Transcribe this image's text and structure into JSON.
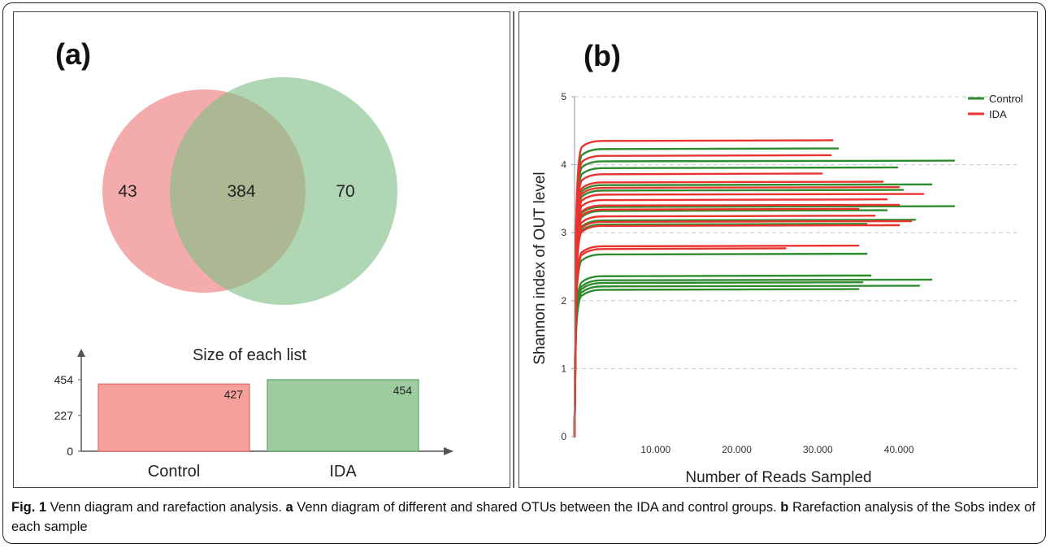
{
  "panel_a": {
    "label": "(a)",
    "venn": {
      "left_only": "43",
      "shared": "384",
      "right_only": "70",
      "left_color": "#f08a8a",
      "right_color": "#7fbf86"
    }
  },
  "panel_b": {
    "label": "(b)"
  },
  "caption": {
    "fig_label": "Fig. 1",
    "title": " Venn diagram and rarefaction analysis. ",
    "a_label": "a",
    "a_text": " Venn diagram of different and shared OTUs between the IDA and control groups. ",
    "b_label": "b",
    "b_text": " Rarefaction analysis of the Sobs index of each sample"
  },
  "chart_data": [
    {
      "type": "bar",
      "title": "Size of each list",
      "categories": [
        "Control",
        "IDA"
      ],
      "values": [
        427,
        454
      ],
      "value_labels": [
        "427",
        "454"
      ],
      "yticks": [
        "454",
        "227",
        "0"
      ],
      "ylim": [
        0,
        454
      ],
      "colors": [
        "#f5a09a",
        "#9ccc9f"
      ],
      "edge_colors": [
        "#e06c66",
        "#5fa466"
      ]
    },
    {
      "type": "line",
      "xlabel": "Number of Reads Sampled",
      "ylabel": "Shannon index of OUT level",
      "xlim": [
        0,
        47000
      ],
      "ylim": [
        0,
        5
      ],
      "xticks": [
        "10.000",
        "20.000",
        "30.000",
        "40.000"
      ],
      "xtick_values": [
        10000,
        20000,
        30000,
        40000
      ],
      "yticks": [
        "0",
        "1",
        "2",
        "3",
        "4",
        "5"
      ],
      "grid": "horizontal dashed",
      "legend": "top-right",
      "series": [
        {
          "name": "Control",
          "color": "#2e8b2e",
          "curves": [
            {
              "plateau": 4.23,
              "end": 32500
            },
            {
              "plateau": 4.05,
              "end": 46800
            },
            {
              "plateau": 3.95,
              "end": 39800
            },
            {
              "plateau": 3.7,
              "end": 44000
            },
            {
              "plateau": 3.62,
              "end": 40500
            },
            {
              "plateau": 3.38,
              "end": 46800
            },
            {
              "plateau": 3.32,
              "end": 38500
            },
            {
              "plateau": 3.18,
              "end": 42000
            },
            {
              "plateau": 3.12,
              "end": 36000
            },
            {
              "plateau": 2.68,
              "end": 36000
            },
            {
              "plateau": 2.36,
              "end": 36500
            },
            {
              "plateau": 2.3,
              "end": 44000
            },
            {
              "plateau": 2.26,
              "end": 35500
            },
            {
              "plateau": 2.21,
              "end": 42500
            },
            {
              "plateau": 2.16,
              "end": 35000
            }
          ]
        },
        {
          "name": "IDA",
          "color": "#e8332f",
          "curves": [
            {
              "plateau": 4.35,
              "end": 31800
            },
            {
              "plateau": 4.13,
              "end": 31600
            },
            {
              "plateau": 3.86,
              "end": 30500
            },
            {
              "plateau": 3.74,
              "end": 38000
            },
            {
              "plateau": 3.66,
              "end": 40000
            },
            {
              "plateau": 3.56,
              "end": 43000
            },
            {
              "plateau": 3.48,
              "end": 38500
            },
            {
              "plateau": 3.4,
              "end": 40000
            },
            {
              "plateau": 3.34,
              "end": 35000
            },
            {
              "plateau": 3.24,
              "end": 37000
            },
            {
              "plateau": 3.16,
              "end": 41500
            },
            {
              "plateau": 3.1,
              "end": 40000
            },
            {
              "plateau": 2.8,
              "end": 35000
            },
            {
              "plateau": 2.76,
              "end": 26000
            }
          ]
        }
      ]
    }
  ]
}
